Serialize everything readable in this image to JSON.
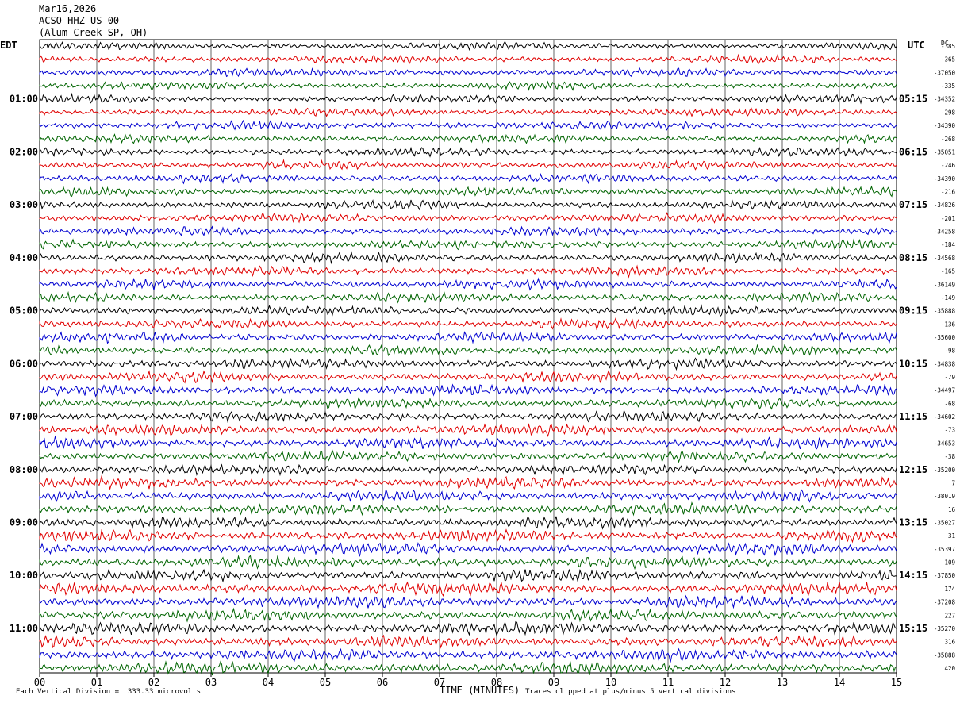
{
  "header": {
    "date": "Mar16,2026",
    "station": "ACSO HHZ US 00",
    "location": "(Alum Creek SP, OH)"
  },
  "left_tz": "EDT",
  "right_tz": "UTC",
  "dc_label": "DC",
  "footer": {
    "scale": "Each Vertical Division =  333.33 microvolts",
    "xlabel": "TIME (MINUTES)",
    "clip_note": "Traces clipped at plus/minus 5 vertical divisions"
  },
  "colors": {
    "black": "#000000",
    "red": "#e00000",
    "blue": "#0000d0",
    "green": "#006400",
    "grid": "#000000"
  },
  "chart_data": {
    "type": "line",
    "title": "",
    "xlabel": "TIME (MINUTES)",
    "xlim": [
      0,
      15
    ],
    "x_ticks": [
      "00",
      "01",
      "02",
      "03",
      "04",
      "05",
      "06",
      "07",
      "08",
      "09",
      "10",
      "11",
      "12",
      "13",
      "14",
      "15"
    ],
    "n_traces": 48,
    "trace_color_cycle": [
      "black",
      "red",
      "blue",
      "green"
    ],
    "left_hour_labels": [
      "01:00",
      "02:00",
      "03:00",
      "04:00",
      "05:00",
      "06:00",
      "07:00",
      "08:00",
      "09:00",
      "10:00",
      "11:00"
    ],
    "right_hour_labels": [
      "05:15",
      "06:15",
      "07:15",
      "08:15",
      "09:15",
      "10:15",
      "11:15",
      "12:15",
      "13:15",
      "14:15",
      "15:15"
    ],
    "dc_offsets": [
      "-385",
      "-365",
      "-37050",
      "-335",
      "-34352",
      "-298",
      "-34390",
      "-268",
      "-35051",
      "-246",
      "-34390",
      "-216",
      "-34826",
      "-201",
      "-34258",
      "-184",
      "-34568",
      "-165",
      "-36149",
      "-149",
      "-35888",
      "-136",
      "-35600",
      "-98",
      "-34838",
      "-79",
      "-34497",
      "-68",
      "-34602",
      "-73",
      "-34653",
      "-38",
      "-35200",
      "7",
      "-38019",
      "16",
      "-35027",
      "31",
      "-35397",
      "109",
      "-37850",
      "174",
      "-37208",
      "227",
      "-35270",
      "316",
      "-35888",
      "420"
    ]
  }
}
